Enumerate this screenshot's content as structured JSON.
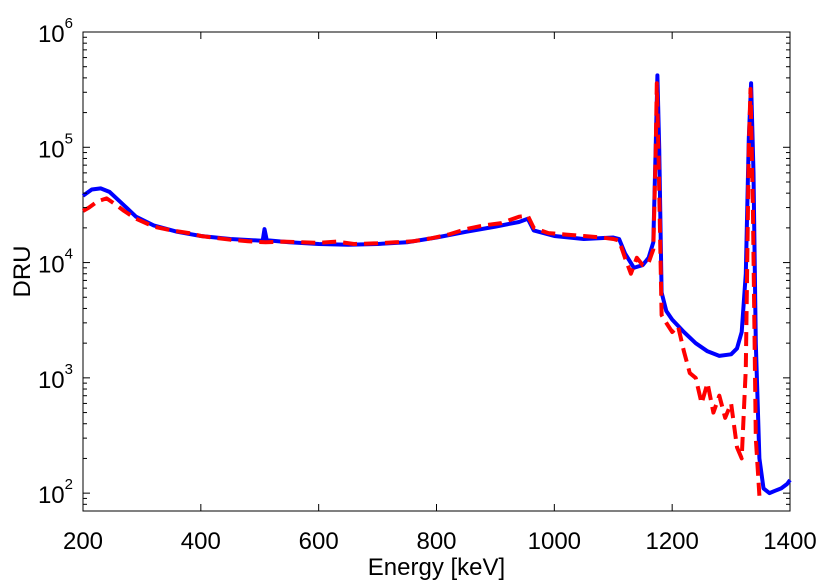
{
  "chart_data": {
    "type": "line",
    "title": "",
    "xlabel": "Energy [keV]",
    "ylabel": "DRU",
    "xlim": [
      200,
      1400
    ],
    "ylim": [
      70,
      1000000
    ],
    "yscale": "log",
    "grid": false,
    "x_ticks": [
      {
        "value": 200,
        "label": "200"
      },
      {
        "value": 400,
        "label": "400"
      },
      {
        "value": 600,
        "label": "600"
      },
      {
        "value": 800,
        "label": "800"
      },
      {
        "value": 1000,
        "label": "1000"
      },
      {
        "value": 1200,
        "label": "1200"
      },
      {
        "value": 1400,
        "label": "1400"
      }
    ],
    "y_ticks": [
      {
        "value": 100,
        "base": "10",
        "exp": "2"
      },
      {
        "value": 1000,
        "base": "10",
        "exp": "3"
      },
      {
        "value": 10000,
        "base": "10",
        "exp": "4"
      },
      {
        "value": 100000,
        "base": "10",
        "exp": "5"
      },
      {
        "value": 1000000,
        "base": "10",
        "exp": "6"
      }
    ],
    "series": [
      {
        "color": "#0000ff",
        "style": "solid",
        "points": [
          [
            200,
            38000
          ],
          [
            215,
            43000
          ],
          [
            230,
            44000
          ],
          [
            245,
            41000
          ],
          [
            265,
            33000
          ],
          [
            290,
            25000
          ],
          [
            320,
            21000
          ],
          [
            360,
            18500
          ],
          [
            400,
            17000
          ],
          [
            450,
            16000
          ],
          [
            500,
            15500
          ],
          [
            505,
            15500
          ],
          [
            508,
            19500
          ],
          [
            512,
            15600
          ],
          [
            550,
            15000
          ],
          [
            600,
            14500
          ],
          [
            650,
            14300
          ],
          [
            700,
            14500
          ],
          [
            750,
            15000
          ],
          [
            800,
            16500
          ],
          [
            850,
            18500
          ],
          [
            900,
            20500
          ],
          [
            940,
            22500
          ],
          [
            955,
            24000
          ],
          [
            965,
            19000
          ],
          [
            1000,
            17000
          ],
          [
            1050,
            16000
          ],
          [
            1100,
            16500
          ],
          [
            1110,
            16000
          ],
          [
            1120,
            12000
          ],
          [
            1135,
            9000
          ],
          [
            1150,
            9500
          ],
          [
            1160,
            11000
          ],
          [
            1168,
            15000
          ],
          [
            1172,
            100000
          ],
          [
            1175,
            420000
          ],
          [
            1178,
            100000
          ],
          [
            1182,
            5500
          ],
          [
            1190,
            3800
          ],
          [
            1200,
            3200
          ],
          [
            1220,
            2500
          ],
          [
            1240,
            2000
          ],
          [
            1260,
            1700
          ],
          [
            1280,
            1550
          ],
          [
            1300,
            1600
          ],
          [
            1310,
            1800
          ],
          [
            1318,
            2500
          ],
          [
            1325,
            8000
          ],
          [
            1330,
            120000
          ],
          [
            1334,
            360000
          ],
          [
            1338,
            60000
          ],
          [
            1342,
            2000
          ],
          [
            1348,
            200
          ],
          [
            1355,
            110
          ],
          [
            1365,
            100
          ],
          [
            1375,
            105
          ],
          [
            1385,
            110
          ],
          [
            1395,
            120
          ],
          [
            1400,
            130
          ]
        ]
      },
      {
        "color": "#ff0000",
        "style": "dashed",
        "points": [
          [
            200,
            28000
          ],
          [
            210,
            30000
          ],
          [
            225,
            34000
          ],
          [
            240,
            36000
          ],
          [
            255,
            32000
          ],
          [
            270,
            28000
          ],
          [
            290,
            24000
          ],
          [
            320,
            20500
          ],
          [
            350,
            19000
          ],
          [
            380,
            18000
          ],
          [
            400,
            17000
          ],
          [
            420,
            16500
          ],
          [
            450,
            15800
          ],
          [
            480,
            15300
          ],
          [
            510,
            15000
          ],
          [
            540,
            15200
          ],
          [
            570,
            15000
          ],
          [
            600,
            14800
          ],
          [
            630,
            15200
          ],
          [
            660,
            14500
          ],
          [
            700,
            14700
          ],
          [
            730,
            15000
          ],
          [
            760,
            15300
          ],
          [
            790,
            16200
          ],
          [
            820,
            17500
          ],
          [
            850,
            19500
          ],
          [
            880,
            21000
          ],
          [
            910,
            22000
          ],
          [
            940,
            25000
          ],
          [
            955,
            25500
          ],
          [
            965,
            20000
          ],
          [
            990,
            18000
          ],
          [
            1020,
            17500
          ],
          [
            1050,
            17000
          ],
          [
            1080,
            16500
          ],
          [
            1100,
            16000
          ],
          [
            1110,
            15500
          ],
          [
            1120,
            11000
          ],
          [
            1130,
            8000
          ],
          [
            1140,
            11000
          ],
          [
            1150,
            9500
          ],
          [
            1160,
            10000
          ],
          [
            1168,
            13000
          ],
          [
            1172,
            90000
          ],
          [
            1174,
            360000
          ],
          [
            1177,
            80000
          ],
          [
            1182,
            3500
          ],
          [
            1190,
            3000
          ],
          [
            1200,
            2500
          ],
          [
            1210,
            2800
          ],
          [
            1220,
            1700
          ],
          [
            1230,
            1100
          ],
          [
            1240,
            1000
          ],
          [
            1250,
            600
          ],
          [
            1260,
            900
          ],
          [
            1270,
            500
          ],
          [
            1280,
            700
          ],
          [
            1290,
            450
          ],
          [
            1300,
            600
          ],
          [
            1310,
            250
          ],
          [
            1318,
            200
          ],
          [
            1325,
            1200
          ],
          [
            1330,
            100000
          ],
          [
            1333,
            320000
          ],
          [
            1337,
            30000
          ],
          [
            1342,
            300
          ],
          [
            1348,
            95
          ]
        ]
      }
    ]
  }
}
